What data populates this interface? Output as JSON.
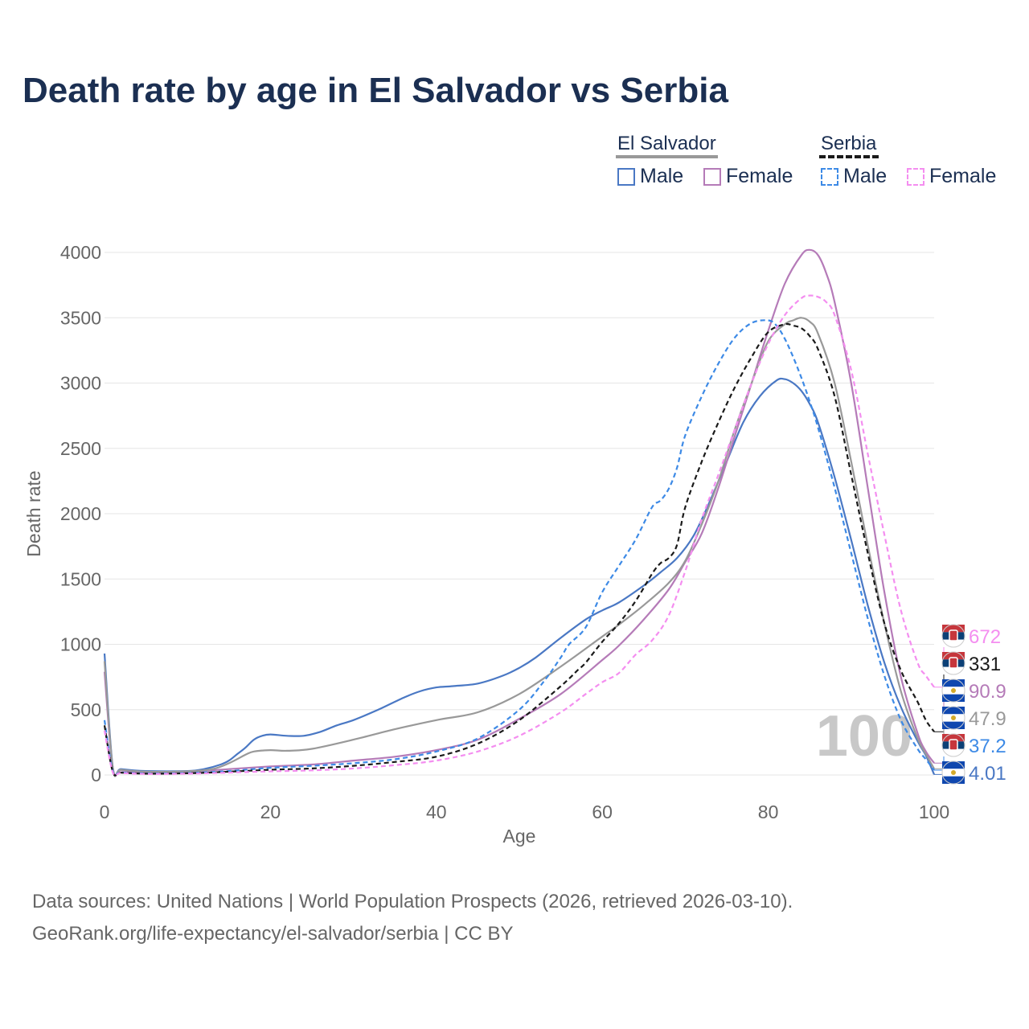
{
  "title": "Death rate by age in El Salvador vs Serbia",
  "legend": {
    "groups": [
      {
        "name": "El Salvador",
        "items": [
          {
            "label": "Male",
            "color": "#4a78c4",
            "dashed": false
          },
          {
            "label": "Female",
            "color": "#b57bb8",
            "dashed": false
          }
        ]
      },
      {
        "name": "Serbia",
        "items": [
          {
            "label": "Male",
            "color": "#3d8ae6",
            "dashed": true
          },
          {
            "label": "Female",
            "color": "#f48ef0",
            "dashed": true
          }
        ]
      }
    ]
  },
  "footer": {
    "source": "Data sources: United Nations | World Population Prospects (2026, retrieved 2026-03-10).",
    "link": "GeoRank.org/life-expectancy/el-salvador/serbia | CC BY"
  },
  "chart_data": {
    "type": "line",
    "xlabel": "Age",
    "ylabel": "Death rate",
    "xlim": [
      0,
      100
    ],
    "ylim": [
      0,
      4000
    ],
    "xticks": [
      0,
      20,
      40,
      60,
      80,
      100
    ],
    "yticks": [
      0,
      500,
      1000,
      1500,
      2000,
      2500,
      3000,
      3500,
      4000
    ],
    "grid": true,
    "watermark": "100",
    "series": [
      {
        "name": "El Salvador Male",
        "country": "El Salvador",
        "color": "#4a78c4",
        "dashed": false,
        "end_label": "4.01",
        "x": [
          0,
          1,
          2,
          5,
          10,
          12,
          14,
          15,
          16,
          17,
          18,
          19,
          20,
          22,
          24,
          26,
          28,
          30,
          33,
          36,
          38,
          40,
          42,
          45,
          48,
          50,
          52,
          55,
          58,
          60,
          62,
          65,
          67,
          69,
          71,
          73,
          75,
          77,
          79,
          81,
          82,
          83,
          84,
          85,
          86,
          88,
          90,
          92,
          94,
          96,
          98,
          99,
          100
        ],
        "y": [
          930,
          60,
          45,
          30,
          30,
          45,
          80,
          110,
          160,
          210,
          270,
          300,
          310,
          300,
          300,
          330,
          380,
          420,
          500,
          590,
          640,
          670,
          680,
          700,
          760,
          820,
          900,
          1050,
          1190,
          1260,
          1320,
          1450,
          1550,
          1660,
          1830,
          2100,
          2400,
          2700,
          2900,
          3020,
          3030,
          3000,
          2940,
          2840,
          2700,
          2280,
          1800,
          1300,
          860,
          520,
          260,
          150,
          4
        ]
      },
      {
        "name": "El Salvador Female",
        "country": "El Salvador",
        "color": "#b57bb8",
        "dashed": false,
        "end_label": "90.9",
        "x": [
          0,
          1,
          2,
          5,
          10,
          15,
          20,
          25,
          30,
          35,
          40,
          45,
          50,
          55,
          60,
          62,
          65,
          68,
          70,
          72,
          74,
          76,
          78,
          80,
          82,
          84,
          85,
          86,
          87,
          88,
          90,
          92,
          94,
          96,
          98,
          99,
          100
        ],
        "y": [
          790,
          50,
          35,
          20,
          25,
          45,
          65,
          80,
          110,
          140,
          190,
          270,
          430,
          620,
          880,
          990,
          1190,
          1420,
          1630,
          1850,
          2200,
          2600,
          3000,
          3400,
          3760,
          3980,
          4020,
          3980,
          3840,
          3620,
          3000,
          2200,
          1400,
          750,
          320,
          180,
          91
        ]
      },
      {
        "name": "El Salvador Total",
        "country": "El Salvador",
        "color": "#999999",
        "dashed": false,
        "end_label": "47.9",
        "x": [
          0,
          1,
          2,
          5,
          10,
          13,
          15,
          17,
          18,
          20,
          22,
          25,
          30,
          35,
          40,
          45,
          50,
          55,
          60,
          62,
          65,
          68,
          70,
          72,
          74,
          76,
          78,
          80,
          82,
          83,
          84,
          85,
          86,
          88,
          90,
          92,
          94,
          96,
          98,
          99,
          100
        ],
        "y": [
          870,
          55,
          40,
          25,
          28,
          45,
          90,
          155,
          180,
          190,
          185,
          200,
          270,
          350,
          420,
          480,
          620,
          830,
          1060,
          1150,
          1300,
          1470,
          1640,
          1920,
          2250,
          2650,
          3000,
          3320,
          3450,
          3480,
          3500,
          3470,
          3380,
          3000,
          2400,
          1760,
          1160,
          640,
          280,
          160,
          48
        ]
      },
      {
        "name": "Serbia Male",
        "country": "Serbia",
        "color": "#3d8ae6",
        "dashed": true,
        "end_label": "37.2",
        "x": [
          0,
          1,
          2,
          5,
          10,
          15,
          20,
          25,
          30,
          35,
          40,
          45,
          50,
          53,
          55,
          56,
          58,
          60,
          62,
          64,
          66,
          67,
          68,
          69,
          70,
          72,
          74,
          76,
          78,
          80,
          81,
          82,
          83,
          84,
          85,
          86,
          88,
          90,
          92,
          94,
          96,
          98,
          99,
          100
        ],
        "y": [
          420,
          30,
          20,
          12,
          15,
          30,
          55,
          70,
          90,
          120,
          180,
          280,
          500,
          720,
          900,
          1000,
          1130,
          1400,
          1600,
          1800,
          2050,
          2100,
          2190,
          2350,
          2600,
          2900,
          3150,
          3350,
          3460,
          3480,
          3440,
          3340,
          3200,
          3040,
          2860,
          2660,
          2200,
          1700,
          1200,
          760,
          420,
          200,
          120,
          37
        ]
      },
      {
        "name": "Serbia Total",
        "country": "Serbia",
        "color": "#1a1a1a",
        "dashed": true,
        "end_label": "331",
        "x": [
          0,
          1,
          2,
          5,
          10,
          15,
          20,
          25,
          30,
          35,
          40,
          45,
          50,
          55,
          57,
          58,
          60,
          62,
          64,
          66,
          67,
          68,
          69,
          70,
          72,
          74,
          76,
          78,
          80,
          82,
          83,
          84,
          85,
          86,
          88,
          90,
          92,
          94,
          96,
          98,
          99,
          100
        ],
        "y": [
          380,
          25,
          18,
          10,
          13,
          25,
          40,
          50,
          70,
          100,
          140,
          240,
          420,
          680,
          800,
          860,
          1020,
          1160,
          1330,
          1540,
          1620,
          1660,
          1760,
          2050,
          2400,
          2700,
          2970,
          3200,
          3390,
          3450,
          3440,
          3420,
          3360,
          3260,
          2900,
          2300,
          1700,
          1160,
          800,
          560,
          420,
          331
        ]
      },
      {
        "name": "Serbia Female",
        "country": "Serbia",
        "color": "#f48ef0",
        "dashed": true,
        "end_label": "672",
        "x": [
          0,
          1,
          2,
          5,
          10,
          15,
          20,
          25,
          30,
          35,
          40,
          45,
          50,
          55,
          58,
          60,
          62,
          64,
          66,
          68,
          70,
          72,
          74,
          76,
          78,
          80,
          82,
          84,
          85,
          86,
          87,
          88,
          90,
          92,
          94,
          96,
          98,
          99,
          100
        ],
        "y": [
          340,
          20,
          15,
          8,
          10,
          18,
          28,
          35,
          50,
          75,
          110,
          180,
          300,
          480,
          620,
          710,
          780,
          920,
          1030,
          1220,
          1560,
          1960,
          2300,
          2650,
          3000,
          3300,
          3520,
          3650,
          3670,
          3660,
          3620,
          3520,
          3100,
          2460,
          1840,
          1260,
          860,
          760,
          672
        ]
      }
    ]
  }
}
